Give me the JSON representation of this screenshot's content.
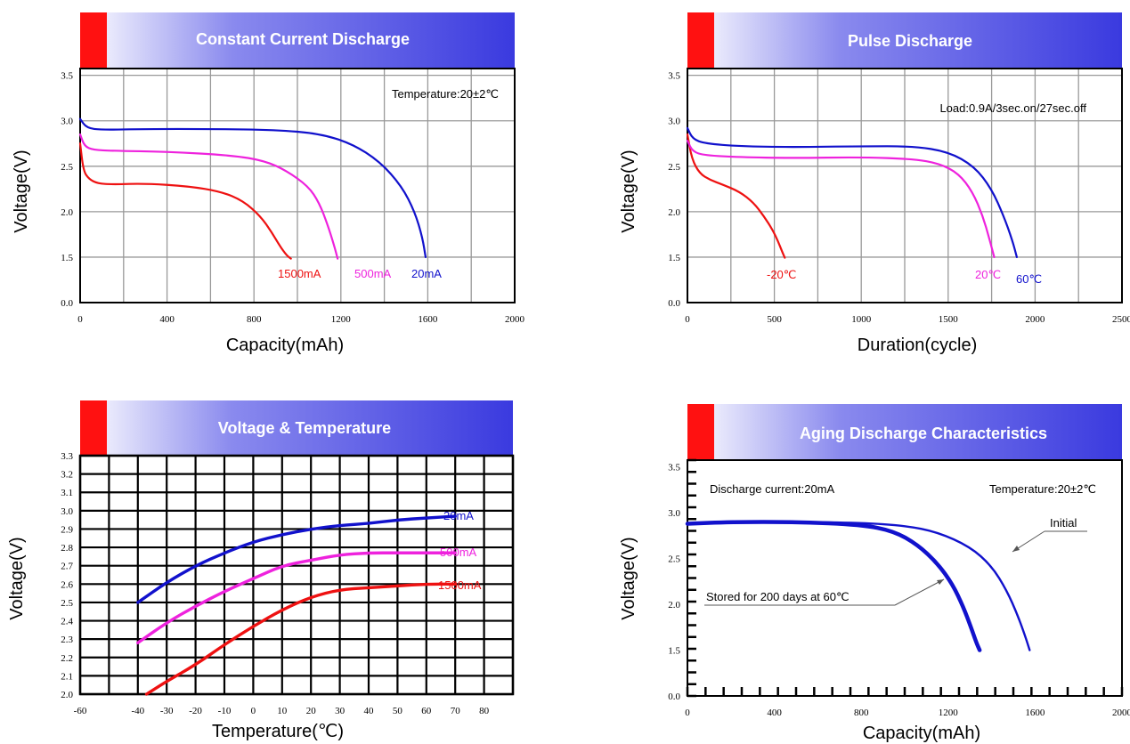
{
  "colors": {
    "red": "#ee1111",
    "magenta": "#ee22dd",
    "blue": "#1111cc",
    "grid": "#999999",
    "banner_start": "#ffffff",
    "banner_end": "#3a3adf",
    "accent_block": "#ff1111"
  },
  "chart_data": [
    {
      "type": "line",
      "title": "Constant Current Discharge",
      "annotation": "Temperature:20±2℃",
      "xlabel": "Capacity(mAh)",
      "ylabel": "Voltage(V)",
      "xlim": [
        0,
        2000
      ],
      "xticks": [
        0,
        400,
        800,
        1200,
        1600,
        2000
      ],
      "yticks": [
        0.0,
        1.5,
        2.0,
        2.5,
        3.0,
        3.5
      ],
      "grid": true,
      "series": [
        {
          "name": "1500mA",
          "color": "red",
          "x": [
            0,
            15,
            40,
            80,
            150,
            300,
            500,
            650,
            750,
            830,
            880,
            920,
            950,
            970
          ],
          "y": [
            2.75,
            2.45,
            2.36,
            2.31,
            2.3,
            2.31,
            2.28,
            2.22,
            2.12,
            1.95,
            1.78,
            1.62,
            1.52,
            1.45
          ]
        },
        {
          "name": "500mA",
          "color": "magenta",
          "x": [
            0,
            20,
            60,
            150,
            400,
            700,
            850,
            950,
            1050,
            1100,
            1140,
            1170,
            1185
          ],
          "y": [
            2.85,
            2.72,
            2.68,
            2.67,
            2.66,
            2.62,
            2.56,
            2.45,
            2.28,
            2.1,
            1.85,
            1.62,
            1.45
          ]
        },
        {
          "name": "20mA",
          "color": "blue",
          "x": [
            0,
            30,
            100,
            300,
            600,
            900,
            1100,
            1250,
            1380,
            1480,
            1540,
            1575,
            1590
          ],
          "y": [
            3.02,
            2.92,
            2.9,
            2.91,
            2.91,
            2.9,
            2.86,
            2.75,
            2.55,
            2.28,
            2.0,
            1.72,
            1.5
          ]
        }
      ]
    },
    {
      "type": "line",
      "title": "Pulse Discharge",
      "annotation": "Load:0.9A/3sec.on/27sec.off",
      "xlabel": "Duration(cycle)",
      "ylabel": "Voltage(V)",
      "xlim": [
        0,
        2500
      ],
      "xticks": [
        0,
        500,
        1000,
        1500,
        2000,
        2500
      ],
      "yticks": [
        0.0,
        1.5,
        2.0,
        2.5,
        3.0,
        3.5
      ],
      "grid": true,
      "series": [
        {
          "name": "-20℃",
          "color": "red",
          "x": [
            0,
            25,
            70,
            130,
            200,
            300,
            380,
            440,
            490,
            520,
            545,
            560
          ],
          "y": [
            2.85,
            2.58,
            2.42,
            2.35,
            2.3,
            2.22,
            2.1,
            1.95,
            1.8,
            1.68,
            1.56,
            1.48
          ]
        },
        {
          "name": "20℃",
          "color": "magenta",
          "x": [
            0,
            30,
            100,
            300,
            600,
            1000,
            1300,
            1450,
            1560,
            1640,
            1700,
            1740,
            1765
          ],
          "y": [
            2.78,
            2.66,
            2.62,
            2.6,
            2.59,
            2.6,
            2.58,
            2.53,
            2.42,
            2.22,
            1.95,
            1.68,
            1.5
          ]
        },
        {
          "name": "60℃",
          "color": "blue",
          "x": [
            0,
            30,
            100,
            300,
            600,
            1000,
            1300,
            1500,
            1650,
            1750,
            1820,
            1870,
            1895
          ],
          "y": [
            2.92,
            2.8,
            2.75,
            2.72,
            2.71,
            2.72,
            2.72,
            2.66,
            2.5,
            2.25,
            1.95,
            1.68,
            1.5
          ]
        }
      ]
    },
    {
      "type": "line",
      "title": "Voltage & Temperature",
      "xlabel": "Temperature(℃)",
      "ylabel": "Voltage(V)",
      "xlim": [
        -60,
        90
      ],
      "ylim": [
        2.0,
        3.3
      ],
      "xticks": [
        -60,
        -40,
        -30,
        -20,
        -10,
        0,
        10,
        20,
        30,
        40,
        50,
        60,
        70,
        80
      ],
      "yticks": [
        2.0,
        2.1,
        2.2,
        2.3,
        2.4,
        2.5,
        2.6,
        2.7,
        2.8,
        2.9,
        3.0,
        3.1,
        3.2,
        3.3
      ],
      "grid": true,
      "series": [
        {
          "name": "20mA",
          "color": "blue",
          "x": [
            -40,
            -30,
            -20,
            -10,
            0,
            10,
            20,
            30,
            40,
            50,
            60,
            70
          ],
          "y": [
            2.5,
            2.61,
            2.7,
            2.77,
            2.83,
            2.87,
            2.9,
            2.92,
            2.93,
            2.95,
            2.96,
            2.97
          ]
        },
        {
          "name": "500mA",
          "color": "magenta",
          "x": [
            -40,
            -30,
            -20,
            -10,
            0,
            10,
            20,
            30,
            40,
            50,
            60,
            70
          ],
          "y": [
            2.28,
            2.39,
            2.48,
            2.56,
            2.63,
            2.7,
            2.73,
            2.76,
            2.77,
            2.77,
            2.77,
            2.77
          ]
        },
        {
          "name": "1500mA",
          "color": "red",
          "x": [
            -37,
            -30,
            -20,
            -10,
            0,
            10,
            20,
            30,
            40,
            50,
            60,
            70
          ],
          "y": [
            2.0,
            2.07,
            2.16,
            2.27,
            2.37,
            2.46,
            2.53,
            2.57,
            2.58,
            2.59,
            2.6,
            2.6
          ]
        }
      ]
    },
    {
      "type": "line",
      "title": "Aging Discharge Characteristics",
      "annotations": [
        "Discharge current:20mA",
        "Temperature:20±2℃"
      ],
      "xlabel": "Capacity(mAh)",
      "ylabel": "Voltage(V)",
      "xlim": [
        0,
        2000
      ],
      "xticks": [
        0,
        400,
        800,
        1200,
        1600,
        2000
      ],
      "yticks": [
        0.0,
        1.5,
        2.0,
        2.5,
        3.0,
        3.5
      ],
      "grid": false,
      "series": [
        {
          "name": "Initial",
          "color": "blue",
          "x": [
            0,
            200,
            500,
            800,
            1000,
            1150,
            1300,
            1400,
            1470,
            1520,
            1555,
            1575
          ],
          "y": [
            2.88,
            2.9,
            2.9,
            2.89,
            2.86,
            2.79,
            2.63,
            2.42,
            2.15,
            1.88,
            1.65,
            1.5
          ]
        },
        {
          "name": "Stored for 200 days at 60℃",
          "color": "blue",
          "x": [
            0,
            200,
            500,
            800,
            950,
            1060,
            1150,
            1220,
            1270,
            1305,
            1330,
            1345
          ],
          "y": [
            2.88,
            2.9,
            2.9,
            2.87,
            2.8,
            2.65,
            2.45,
            2.22,
            1.97,
            1.75,
            1.58,
            1.5
          ]
        }
      ]
    }
  ],
  "labels": {
    "c1": {
      "title": "Constant Current Discharge",
      "annotation": "Temperature:20±2℃",
      "xlabel": "Capacity(mAh)",
      "ylabel": "Voltage(V)",
      "s1": "1500mA",
      "s2": "500mA",
      "s3": "20mA"
    },
    "c2": {
      "title": "Pulse Discharge",
      "annotation": "Load:0.9A/3sec.on/27sec.off",
      "xlabel": "Duration(cycle)",
      "ylabel": "Voltage(V)",
      "s1": "-20℃",
      "s2": "20℃",
      "s3": "60℃"
    },
    "c3": {
      "title": "Voltage & Temperature",
      "xlabel": "Temperature(℃)",
      "ylabel": "Voltage(V)",
      "s1": "20mA",
      "s2": "500mA",
      "s3": "1500mA"
    },
    "c4": {
      "title": "Aging Discharge Characteristics",
      "ann1": "Discharge current:20mA",
      "ann2": "Temperature:20±2℃",
      "xlabel": "Capacity(mAh)",
      "ylabel": "Voltage(V)",
      "s1": "Initial",
      "s2": "Stored for 200 days at 60℃"
    }
  }
}
